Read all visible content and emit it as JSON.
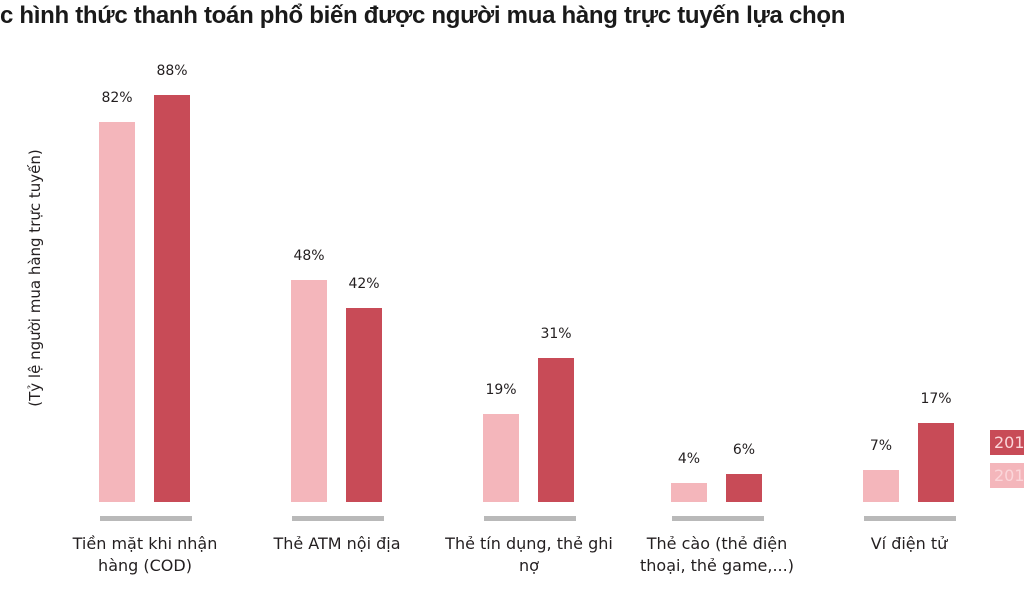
{
  "chart_data": {
    "type": "bar",
    "title": "c hình thức thanh toán phổ biến được người mua hàng trực tuyến lựa chọn",
    "ylabel": "(Tỷ lệ người mua hàng trực tuyến)",
    "xlabel": "",
    "categories": [
      "Tiền mặt khi nhận hàng (COD)",
      "Thẻ ATM nội địa",
      "Thẻ tín dụng, thẻ ghi nợ",
      "Thẻ cào (thẻ điện thoại, thẻ game,...)",
      "Ví điện tử"
    ],
    "series": [
      {
        "name": "201",
        "color": "#f4b6bb",
        "values": [
          82,
          48,
          19,
          4,
          7
        ],
        "labels": [
          "82%",
          "48%",
          "19%",
          "4%",
          "7%"
        ]
      },
      {
        "name": "201",
        "color": "#c84b57",
        "values": [
          88,
          42,
          31,
          6,
          17
        ],
        "labels": [
          "88%",
          "42%",
          "31%",
          "6%",
          "17%"
        ]
      }
    ],
    "ylim": [
      0,
      100
    ],
    "grid": false,
    "legend_position": "right"
  }
}
